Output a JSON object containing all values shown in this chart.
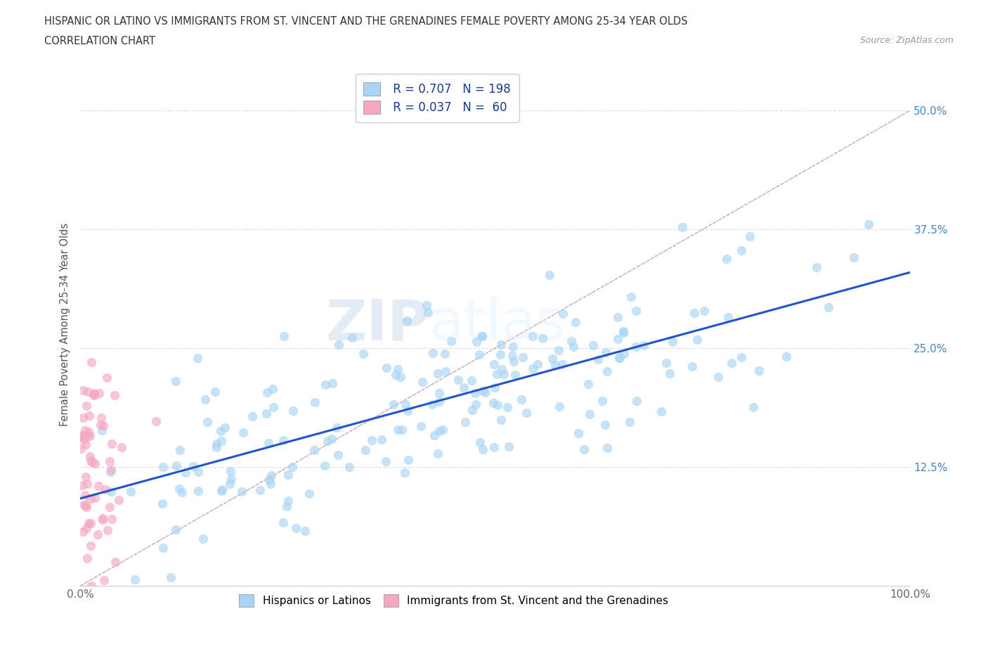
{
  "title_line1": "HISPANIC OR LATINO VS IMMIGRANTS FROM ST. VINCENT AND THE GRENADINES FEMALE POVERTY AMONG 25-34 YEAR OLDS",
  "title_line2": "CORRELATION CHART",
  "source_text": "Source: ZipAtlas.com",
  "ylabel": "Female Poverty Among 25-34 Year Olds",
  "xlim": [
    0,
    1.0
  ],
  "ylim": [
    0,
    0.55
  ],
  "xticks": [
    0.0,
    0.1,
    0.2,
    0.3,
    0.4,
    0.5,
    0.6,
    0.7,
    0.8,
    0.9,
    1.0
  ],
  "xtick_labels": [
    "0.0%",
    "",
    "",
    "",
    "",
    "",
    "",
    "",
    "",
    "",
    "100.0%"
  ],
  "yticks": [
    0.0,
    0.125,
    0.25,
    0.375,
    0.5
  ],
  "ytick_labels": [
    "",
    "12.5%",
    "25.0%",
    "37.5%",
    "50.0%"
  ],
  "watermark_zip": "ZIP",
  "watermark_atlas": "atlas",
  "R_blue": 0.707,
  "N_blue": 198,
  "R_pink": 0.037,
  "N_pink": 60,
  "blue_color": "#a8d4f5",
  "pink_color": "#f5a8c0",
  "blue_line_color": "#2255cc",
  "pink_line_color": "#e06090",
  "diagonal_color": "#bbbbbb",
  "legend_text_color": "#1a3a8a",
  "background_color": "#FFFFFF",
  "scatter_alpha": 0.65,
  "scatter_size": 80,
  "seed": 12
}
